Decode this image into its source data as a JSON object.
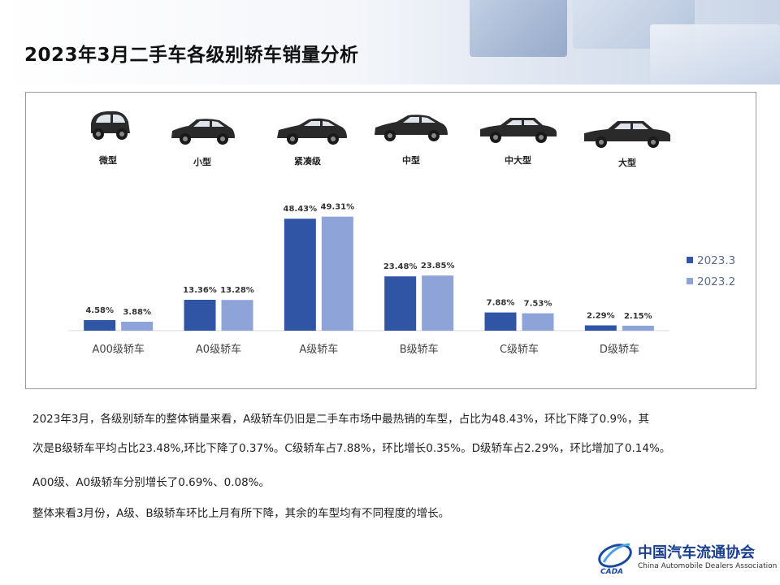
{
  "page": {
    "title": "2023年3月二手车各级别轿车销量分析"
  },
  "car_types": [
    "微型",
    "小型",
    "紧凑级",
    "中型",
    "中大型",
    "大型"
  ],
  "colors": {
    "series_a": "#2f55a4",
    "series_b": "#8ea3d8",
    "axis": "#d9d9d9",
    "title": "#111111"
  },
  "chart_data": {
    "type": "bar",
    "categories": [
      "A00级轿车",
      "A0级轿车",
      "A级轿车",
      "B级轿车",
      "C级轿车",
      "D级轿车"
    ],
    "series": [
      {
        "name": "2023.3",
        "values": [
          4.58,
          13.36,
          48.43,
          23.48,
          7.88,
          2.29
        ],
        "labels": [
          "4.58%",
          "13.36%",
          "48.43%",
          "23.48%",
          "7.88%",
          "2.29%"
        ]
      },
      {
        "name": "2023.2",
        "values": [
          3.88,
          13.28,
          49.31,
          23.85,
          7.53,
          2.15
        ],
        "labels": [
          "3.88%",
          "13.28%",
          "49.31%",
          "23.85%",
          "7.53%",
          "2.15%"
        ]
      }
    ],
    "ylim": [
      0,
      52
    ],
    "grid": false,
    "legend": "right"
  },
  "description": [
    "2023年3月，各级别轿车的整体销量来看，A级轿车仍旧是二手车市场中最热销的车型，占比为48.43%，环比下降了0.9%，其",
    "次是B级轿车平均占比23.48%,环比下降了0.37%。C级轿车占7.88%，环比增长0.35%。D级轿车占2.29%，环比增加了0.14%。",
    "A00级、A0级轿车分别增长了0.69%、0.08%。",
    "整体来看3月份，A级、B级轿车环比上月有所下降，其余的车型均有不同程度的增长。"
  ],
  "logo": {
    "cn": "中国汽车流通协会",
    "en": "China Automobile Dealers Association",
    "mark_text": "CADA"
  }
}
